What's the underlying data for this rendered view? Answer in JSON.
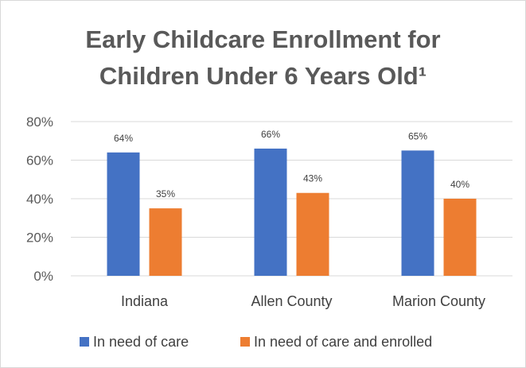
{
  "chart_data": {
    "type": "bar",
    "title_line1": "Early Childcare Enrollment for",
    "title_line2": "Children Under 6 Years Old¹",
    "categories": [
      "Indiana",
      "Allen County",
      "Marion County"
    ],
    "series": [
      {
        "name": "In need of care",
        "values": [
          64,
          66,
          65
        ],
        "labels": [
          "64%",
          "66%",
          "65%"
        ],
        "color": "#4472c4"
      },
      {
        "name": "In need of care and enrolled",
        "values": [
          35,
          43,
          40
        ],
        "labels": [
          "35%",
          "43%",
          "40%"
        ],
        "color": "#ed7d31"
      }
    ],
    "ylim": [
      0,
      80
    ],
    "yticks": [
      0,
      20,
      40,
      60,
      80
    ],
    "ytick_labels": [
      "0%",
      "20%",
      "40%",
      "60%",
      "80%"
    ],
    "grid": true,
    "grid_color": "#d9d9d9",
    "legend_position": "bottom"
  }
}
